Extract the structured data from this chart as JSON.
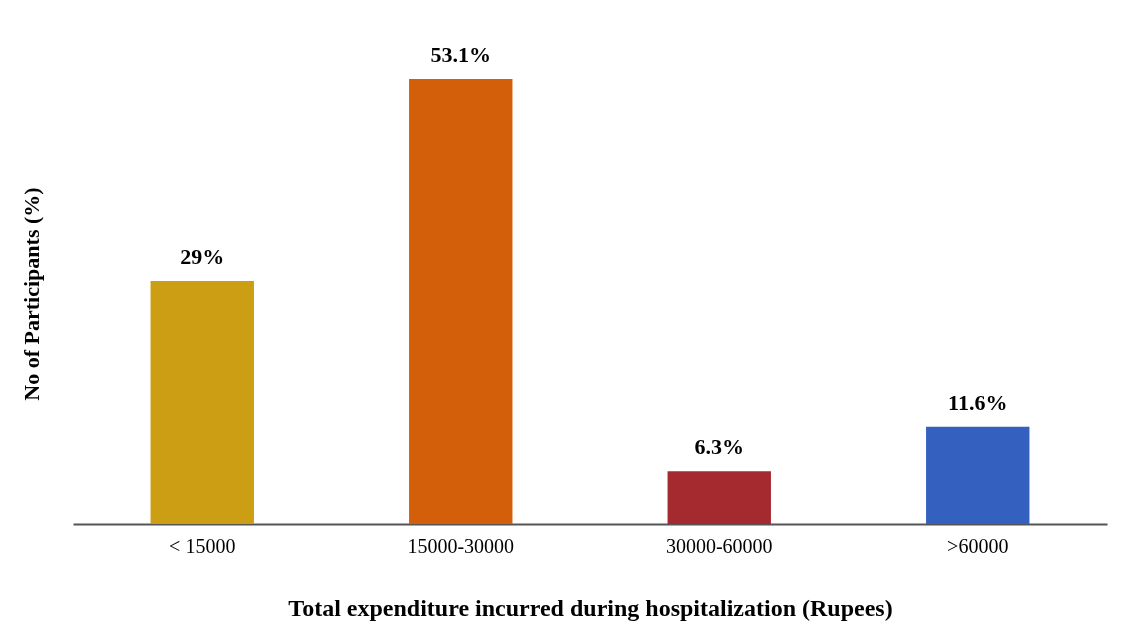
{
  "chart_data": {
    "type": "bar",
    "xlabel": "Total expenditure incurred during hospitalization (Rupees)",
    "ylabel": "No of Participants (%)",
    "categories": [
      "< 15000",
      "15000-30000",
      "30000-60000",
      ">60000"
    ],
    "values": [
      29,
      53.1,
      6.3,
      11.6
    ],
    "colors": [
      "#cc9e14",
      "#d45f0a",
      "#a52a30",
      "#3460c0"
    ],
    "value_labels": [
      "29%",
      "53.1%",
      "6.3%",
      "11.6%"
    ],
    "tick_labels": "x",
    "grid": false,
    "legend": false
  }
}
